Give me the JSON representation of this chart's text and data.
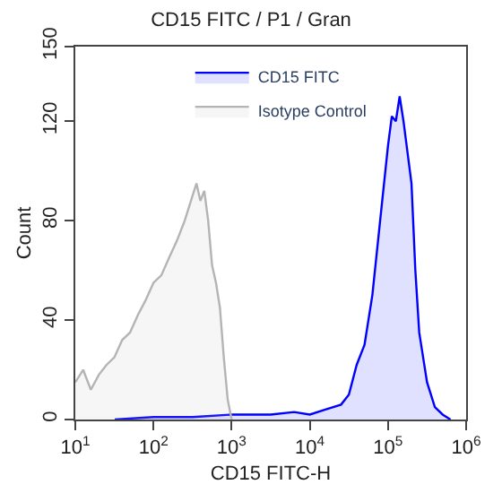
{
  "chart_data": {
    "type": "area",
    "title": "CD15 FITC / P1 / Gran",
    "xlabel": "CD15 FITC-H",
    "ylabel": "Count",
    "log": "x",
    "legend": "top right",
    "marker": "none",
    "line_style": "solid",
    "xlim": [
      10,
      1000000
    ],
    "xticks": [
      {
        "value": 10,
        "label": "10$^{1}$"
      },
      {
        "value": 100,
        "label": "10$^{2}$"
      },
      {
        "value": 1000,
        "label": "10$^{3}$"
      },
      {
        "value": 10000,
        "label": "10$^{4}$"
      },
      {
        "value": 100000,
        "label": "10$^{5}$"
      },
      {
        "value": 1000000,
        "label": "10$^{6}$"
      }
    ],
    "ylim": [
      0,
      150
    ],
    "yticks": [
      0,
      40,
      80,
      120,
      150
    ],
    "series": [
      {
        "name": "CD15 FITC",
        "color": "#0000ff",
        "x": [
          32,
          100,
          316,
          1000,
          3160,
          6310,
          10000,
          15800,
          25100,
          31600,
          39800,
          50100,
          63100,
          79400,
          100000,
          112000,
          126000,
          141000,
          158000,
          200000,
          224000,
          251000,
          316000,
          398000,
          501000,
          631000
        ],
        "values": [
          0,
          1,
          1,
          2,
          2,
          3,
          2,
          4,
          6,
          10,
          22,
          30,
          50,
          80,
          110,
          122,
          120,
          130,
          120,
          95,
          60,
          35,
          15,
          5,
          2,
          0
        ]
      },
      {
        "name": "Isotype Control",
        "color": "#b4b4b4",
        "x": [
          10,
          12.6,
          15.8,
          20,
          25.1,
          31.6,
          39.8,
          50.1,
          63.1,
          79.4,
          100,
          126,
          158,
          200,
          251,
          316,
          355,
          398,
          447,
          501,
          562,
          631,
          708,
          794,
          891,
          1000
        ],
        "values": [
          15,
          20,
          12,
          18,
          22,
          25,
          32,
          35,
          42,
          48,
          55,
          58,
          65,
          72,
          80,
          90,
          95,
          88,
          92,
          80,
          62,
          55,
          45,
          25,
          8,
          0
        ]
      }
    ]
  }
}
